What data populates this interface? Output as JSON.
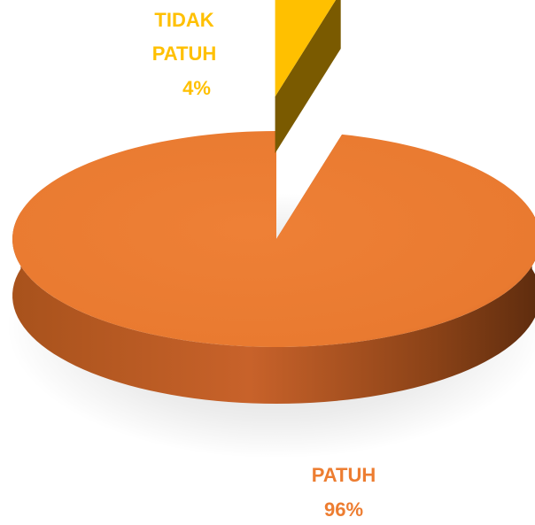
{
  "chart_data": {
    "type": "pie",
    "categories": [
      "TIDAK PATUH",
      "PATUH"
    ],
    "values": [
      4,
      96
    ],
    "labels": [
      {
        "name_lines": [
          "TIDAK",
          "PATUH"
        ],
        "percent": "4%"
      },
      {
        "name_lines": [
          "PATUH"
        ],
        "percent": "96%"
      }
    ],
    "colors": [
      "#FFC000",
      "#ED7D31"
    ],
    "exploded": [
      "TIDAK PATUH"
    ],
    "style": "3d",
    "legend": "none"
  }
}
